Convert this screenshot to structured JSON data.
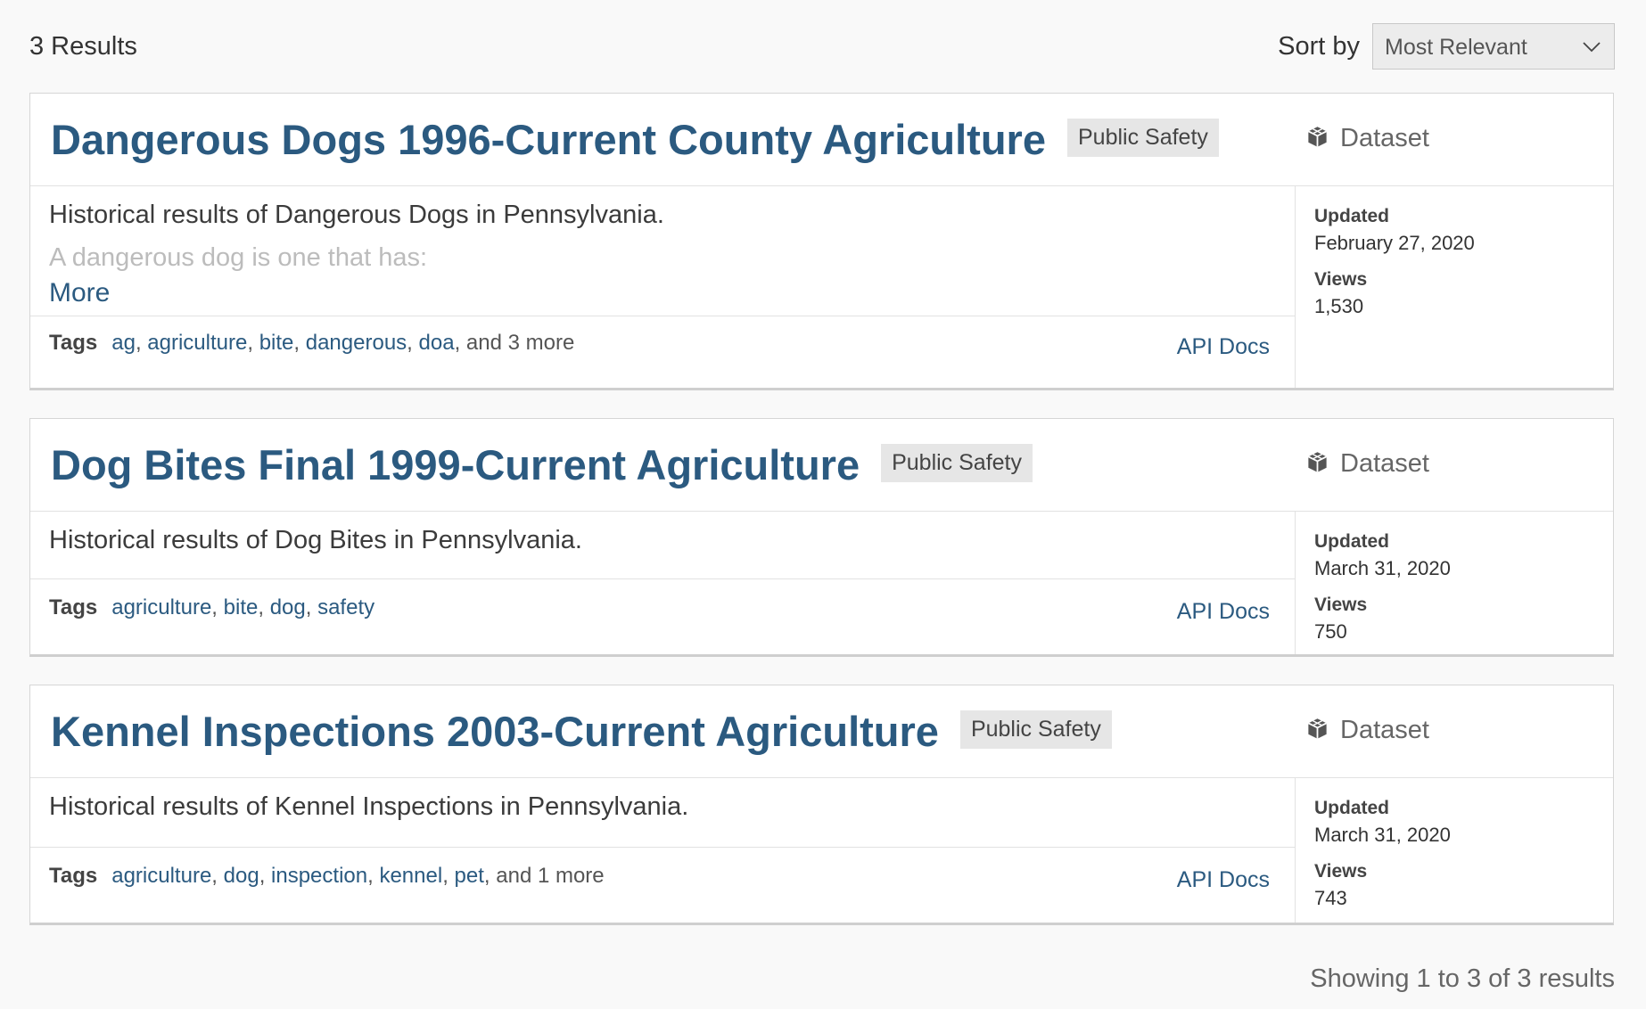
{
  "header": {
    "results_count": "3 Results",
    "sort_label": "Sort by",
    "sort_value": "Most Relevant"
  },
  "results": [
    {
      "title": "Dangerous Dogs 1996-Current County Agriculture",
      "category": "Public Safety",
      "type": "Dataset",
      "description": "Historical results of Dangerous Dogs in Pennsylvania.",
      "description_more": "A dangerous dog is one that has:",
      "more_label": "More",
      "tags_label": "Tags",
      "tags": [
        "ag",
        "agriculture",
        "bite",
        "dangerous",
        "doa"
      ],
      "tags_more": ", and 3 more",
      "api_docs": "API Docs",
      "updated_label": "Updated",
      "updated": "February 27, 2020",
      "views_label": "Views",
      "views": "1,530"
    },
    {
      "title": "Dog Bites Final 1999-Current Agriculture",
      "category": "Public Safety",
      "type": "Dataset",
      "description": "Historical results of Dog Bites in Pennsylvania.",
      "tags_label": "Tags",
      "tags": [
        "agriculture",
        "bite",
        "dog",
        "safety"
      ],
      "api_docs": "API Docs",
      "updated_label": "Updated",
      "updated": "March 31, 2020",
      "views_label": "Views",
      "views": "750"
    },
    {
      "title": "Kennel Inspections 2003-Current Agriculture",
      "category": "Public Safety",
      "type": "Dataset",
      "description": "Historical results of Kennel Inspections in Pennsylvania.",
      "tags_label": "Tags",
      "tags": [
        "agriculture",
        "dog",
        "inspection",
        "kennel",
        "pet"
      ],
      "tags_more": ", and 1 more",
      "api_docs": "API Docs",
      "updated_label": "Updated",
      "updated": "March 31, 2020",
      "views_label": "Views",
      "views": "743"
    }
  ],
  "footer": {
    "showing": "Showing 1 to 3 of 3 results"
  },
  "colors": {
    "link": "#2b5a80",
    "badge_bg": "#e6e6e6",
    "page_bg": "#f9f9f9"
  },
  "icons": {
    "dataset": "cube-icon",
    "sort": "chevron-down-icon"
  }
}
